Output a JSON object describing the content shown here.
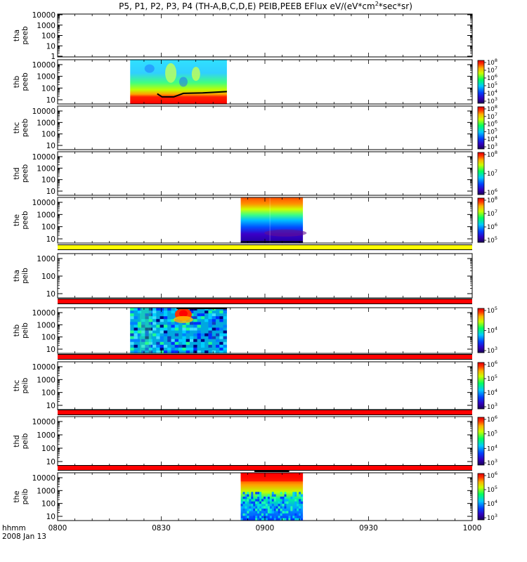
{
  "title": {
    "prefix": "P5, P1, P2, P3, P4 (TH-A,B,C,D,E) PEIB,PEEB EFlux eV/(eV*cm",
    "sup": "2",
    "suffix": "*sec*sr)"
  },
  "footer": {
    "hhmm": "hhmm",
    "date": "2008 Jan 13"
  },
  "colors": {
    "flag_yellow": "#ffff00",
    "flag_red": "#ff0000",
    "flag_black": "#000000",
    "axis": "#000000"
  },
  "chart_data": {
    "type": "heatmap",
    "x_axis": {
      "unit": "hhmm",
      "range": [
        "0800",
        "1000"
      ],
      "ticks": [
        "0800",
        "0830",
        "0900",
        "0930",
        "1000"
      ]
    },
    "panels": [
      {
        "label1": "tha",
        "label2": "peeb",
        "y_ticks": [
          "10000",
          "1000",
          "100",
          "10",
          "1"
        ],
        "spectrogram": null,
        "colorbar": null,
        "flag_after": null
      },
      {
        "label1": "thb",
        "label2": "peeb",
        "y_ticks": [
          "10000",
          "1000",
          "100",
          "10"
        ],
        "spectrogram": {
          "start": "0821",
          "end": "0849",
          "style": "electron_thb"
        },
        "colorbar": {
          "exponents": [
            "3",
            "4",
            "5",
            "6",
            "7",
            "8"
          ]
        },
        "flag_after": null
      },
      {
        "label1": "thc",
        "label2": "peeb",
        "y_ticks": [
          "10000",
          "1000",
          "100",
          "10"
        ],
        "spectrogram": null,
        "colorbar": {
          "exponents": [
            "3",
            "4",
            "5",
            "6",
            "7",
            "8"
          ]
        },
        "flag_after": null
      },
      {
        "label1": "thd",
        "label2": "peeb",
        "y_ticks": [
          "10000",
          "1000",
          "100",
          "10"
        ],
        "spectrogram": null,
        "colorbar": {
          "exponents": [
            "6",
            "7",
            "8"
          ]
        },
        "flag_after": null
      },
      {
        "label1": "the",
        "label2": "peeb",
        "y_ticks": [
          "10000",
          "1000",
          "100",
          "10"
        ],
        "spectrogram": {
          "start": "0853",
          "end": "0911",
          "style": "electron_the"
        },
        "colorbar": {
          "exponents": [
            "5",
            "6",
            "7",
            "8"
          ]
        },
        "flag_after": "yellow"
      },
      {
        "label1": "tha",
        "label2": "peib",
        "y_ticks": [
          "1000",
          "100",
          "10"
        ],
        "spectrogram": null,
        "colorbar": null,
        "flag_after": "red"
      },
      {
        "label1": "thb",
        "label2": "peib",
        "y_ticks": [
          "10000",
          "1000",
          "100",
          "10"
        ],
        "spectrogram": {
          "start": "0821",
          "end": "0849",
          "style": "ion_thb"
        },
        "colorbar": {
          "exponents": [
            "3",
            "4",
            "5"
          ]
        },
        "flag_after": "red"
      },
      {
        "label1": "thc",
        "label2": "peib",
        "y_ticks": [
          "10000",
          "1000",
          "100",
          "10"
        ],
        "spectrogram": null,
        "colorbar": {
          "exponents": [
            "3",
            "4",
            "5",
            "6"
          ]
        },
        "flag_after": "red"
      },
      {
        "label1": "thd",
        "label2": "peib",
        "y_ticks": [
          "10000",
          "1000",
          "100",
          "10"
        ],
        "spectrogram": null,
        "colorbar": {
          "exponents": [
            "3",
            "4",
            "5",
            "6"
          ]
        },
        "flag_after": "red"
      },
      {
        "label1": "the",
        "label2": "peib",
        "y_ticks": [
          "10000",
          "1000",
          "100",
          "10"
        ],
        "spectrogram": {
          "start": "0853",
          "end": "0911",
          "style": "ion_the"
        },
        "colorbar": {
          "exponents": [
            "3",
            "4",
            "5",
            "6"
          ]
        },
        "flag_after": null
      }
    ]
  }
}
